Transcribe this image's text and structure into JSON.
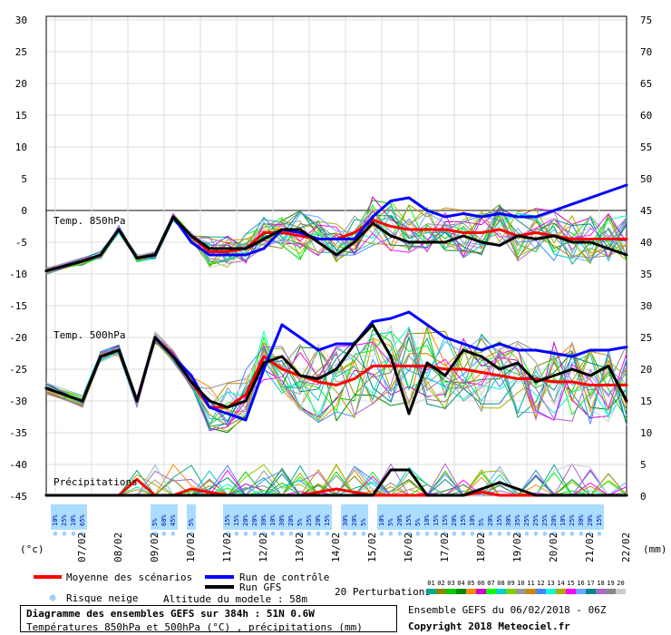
{
  "chart_data": {
    "type": "line",
    "left_axis": {
      "unit": "(°c)",
      "ticks": [
        30,
        25,
        20,
        15,
        10,
        5,
        0,
        -5,
        -10,
        -15,
        -20,
        -25,
        -30,
        -35,
        -40,
        -45
      ]
    },
    "right_axis": {
      "unit": "(mm)",
      "ticks": [
        75,
        70,
        65,
        60,
        55,
        50,
        45,
        40,
        35,
        30,
        25,
        20,
        15,
        10,
        5,
        0
      ]
    },
    "xlim_hours": [
      0,
      384
    ],
    "x_ticks": [
      "07/02",
      "08/02",
      "09/02",
      "10/02",
      "11/02",
      "12/02",
      "13/02",
      "14/02",
      "15/02",
      "16/02",
      "17/02",
      "18/02",
      "19/02",
      "20/02",
      "21/02",
      "22/02"
    ],
    "panel_labels": [
      "Temp. 850hPa",
      "Temp. 500hPa",
      "Précipitations"
    ],
    "x_hours": [
      0,
      24,
      36,
      48,
      60,
      72,
      84,
      96,
      108,
      120,
      132,
      144,
      156,
      168,
      180,
      192,
      204,
      216,
      228,
      240,
      252,
      264,
      276,
      288,
      300,
      312,
      324,
      336,
      348,
      360,
      372,
      384
    ],
    "series": [
      {
        "name": "Moyenne des scénarios",
        "color": "#ff0000",
        "panel": "850",
        "values": [
          -9.5,
          -8,
          -7,
          -3,
          -7.5,
          -7,
          -1,
          -4,
          -6.5,
          -6.5,
          -6,
          -3.5,
          -3.5,
          -4,
          -4.5,
          -4.5,
          -3.5,
          -1.5,
          -2.5,
          -3,
          -3,
          -3,
          -3.5,
          -3.5,
          -3,
          -4,
          -3.5,
          -4,
          -4.5,
          -4.5,
          -4.5,
          -4.5
        ]
      },
      {
        "name": "Run de contrôle",
        "color": "#0000ff",
        "panel": "850",
        "values": [
          -9.5,
          -8,
          -7,
          -3,
          -7.5,
          -7,
          -1,
          -5,
          -7,
          -7,
          -7,
          -6,
          -3,
          -3.5,
          -4.5,
          -4.5,
          -4.5,
          -1,
          1.5,
          2,
          0,
          -1,
          -0.5,
          -1,
          -0.5,
          -1,
          -1,
          0,
          1,
          2,
          3,
          4
        ]
      },
      {
        "name": "Run GFS",
        "color": "#000000",
        "panel": "850",
        "values": [
          -9.5,
          -8,
          -7,
          -3,
          -7.5,
          -7,
          -1,
          -4,
          -6,
          -6,
          -6,
          -4.5,
          -3,
          -3,
          -5,
          -7,
          -5,
          -2,
          -4,
          -5,
          -5,
          -5,
          -4,
          -5,
          -5.5,
          -4,
          -4.5,
          -4,
          -5,
          -5,
          -6,
          -7
        ]
      },
      {
        "name": "Moyenne des scénarios",
        "color": "#ff0000",
        "panel": "500",
        "values": [
          -28,
          -30,
          -23,
          -22,
          -30,
          -20,
          -23,
          -27,
          -31,
          -31,
          -29,
          -23,
          -25,
          -26,
          -27,
          -27.5,
          -26.5,
          -24.5,
          -24.5,
          -24.5,
          -24.5,
          -25,
          -25,
          -25.5,
          -26,
          -26.5,
          -26.5,
          -27,
          -27,
          -27.5,
          -27.5,
          -27.5
        ]
      },
      {
        "name": "Run de contrôle",
        "color": "#0000ff",
        "panel": "500",
        "values": [
          -28,
          -30,
          -23,
          -22,
          -30,
          -20,
          -23,
          -26,
          -31,
          -32,
          -33,
          -25,
          -18,
          -20,
          -22,
          -21,
          -21,
          -17.5,
          -17,
          -16,
          -18,
          -20,
          -21,
          -22,
          -21,
          -22,
          -22,
          -22.5,
          -23,
          -22,
          -22,
          -21.5
        ]
      },
      {
        "name": "Run GFS",
        "color": "#000000",
        "panel": "500",
        "values": [
          -28,
          -30,
          -23,
          -22,
          -30,
          -20,
          -23,
          -27,
          -30,
          -31,
          -30,
          -24,
          -23,
          -26,
          -26.5,
          -25,
          -21,
          -18,
          -23,
          -32,
          -24,
          -26,
          -22,
          -23,
          -25,
          -24,
          -27,
          -26,
          -25,
          -26,
          -24.5,
          -30
        ]
      },
      {
        "name": "Moyenne des scénarios",
        "color": "#ff0000",
        "panel": "precip",
        "values": [
          0,
          0,
          0,
          0,
          2.5,
          0,
          0,
          1,
          0.5,
          0,
          0,
          0,
          0,
          0,
          0.5,
          1,
          0.5,
          0,
          0,
          0,
          0,
          0,
          0,
          0.5,
          0,
          0,
          0,
          0,
          0,
          0,
          0,
          0
        ]
      },
      {
        "name": "Run GFS",
        "color": "#000000",
        "panel": "precip",
        "values": [
          0,
          0,
          0,
          0,
          0,
          0,
          0,
          0,
          0,
          0,
          0,
          0,
          0,
          0,
          0,
          0,
          0,
          0,
          4,
          4,
          0,
          0,
          0,
          1,
          2,
          1,
          0,
          0,
          0,
          0,
          0,
          0
        ]
      }
    ],
    "snow_risk_labels": [
      {
        "hour": 6,
        "text": "10%"
      },
      {
        "hour": 12,
        "text": "25%"
      },
      {
        "hour": 18,
        "text": "10%"
      },
      {
        "hour": 24,
        "text": "65%"
      },
      {
        "hour": 72,
        "text": "5%"
      },
      {
        "hour": 78,
        "text": "60%"
      },
      {
        "hour": 84,
        "text": "45%"
      },
      {
        "hour": 96,
        "text": "5%"
      },
      {
        "hour": 120,
        "text": "15%"
      },
      {
        "hour": 126,
        "text": "15%"
      },
      {
        "hour": 132,
        "text": "20%"
      },
      {
        "hour": 138,
        "text": "20%"
      },
      {
        "hour": 144,
        "text": "30%"
      },
      {
        "hour": 150,
        "text": "10%"
      },
      {
        "hour": 156,
        "text": "30%"
      },
      {
        "hour": 162,
        "text": "20%"
      },
      {
        "hour": 168,
        "text": "5%"
      },
      {
        "hour": 174,
        "text": "25%"
      },
      {
        "hour": 180,
        "text": "20%"
      },
      {
        "hour": 186,
        "text": "15%"
      },
      {
        "hour": 198,
        "text": "30%"
      },
      {
        "hour": 204,
        "text": "20%"
      },
      {
        "hour": 210,
        "text": "5%"
      },
      {
        "hour": 222,
        "text": "10%"
      },
      {
        "hour": 228,
        "text": "5%"
      },
      {
        "hour": 234,
        "text": "20%"
      },
      {
        "hour": 240,
        "text": "15%"
      },
      {
        "hour": 246,
        "text": "5%"
      },
      {
        "hour": 252,
        "text": "10%"
      },
      {
        "hour": 258,
        "text": "15%"
      },
      {
        "hour": 264,
        "text": "15%"
      },
      {
        "hour": 270,
        "text": "20%"
      },
      {
        "hour": 276,
        "text": "15%"
      },
      {
        "hour": 282,
        "text": "10%"
      },
      {
        "hour": 288,
        "text": "5%"
      },
      {
        "hour": 294,
        "text": "20%"
      },
      {
        "hour": 300,
        "text": "15%"
      },
      {
        "hour": 306,
        "text": "30%"
      },
      {
        "hour": 312,
        "text": "35%"
      },
      {
        "hour": 318,
        "text": "25%"
      },
      {
        "hour": 324,
        "text": "25%"
      },
      {
        "hour": 330,
        "text": "25%"
      },
      {
        "hour": 336,
        "text": "20%"
      },
      {
        "hour": 342,
        "text": "10%"
      },
      {
        "hour": 348,
        "text": "25%"
      },
      {
        "hour": 354,
        "text": "30%"
      },
      {
        "hour": 360,
        "text": "20%"
      },
      {
        "hour": 366,
        "text": "15%"
      }
    ],
    "grid": true
  },
  "legend": {
    "mean": "Moyenne des scénarios",
    "control": "Run de contrôle",
    "gfs": "Run GFS",
    "perturbations": "20 Perturbations",
    "snow": "Risque neige",
    "altitude": "Altitude du modele : 58m"
  },
  "perturbation_numbers": [
    "01",
    "02",
    "03",
    "04",
    "05",
    "06",
    "07",
    "08",
    "09",
    "10",
    "11",
    "12",
    "13",
    "14",
    "15",
    "16",
    "17",
    "18",
    "19",
    "20"
  ],
  "perturbation_colors": [
    "#00aa88",
    "#888800",
    "#00cc00",
    "#008800",
    "#ff8800",
    "#cc00cc",
    "#00ff00",
    "#00cccc",
    "#88cc00",
    "#999999",
    "#cc8800",
    "#4488ff",
    "#00ffcc",
    "#aaaa00",
    "#ff00ff",
    "#66aaff",
    "#008888",
    "#aa66cc",
    "#888888",
    "#cccccc"
  ],
  "footer": {
    "title": "Diagramme des ensembles GEFS sur 384h : 51N 0.6W",
    "subtitle": "Températures 850hPa et 500hPa (°C) , précipitations (mm)",
    "ensemble": "Ensemble GEFS du 06/02/2018 - 06Z",
    "copyright": "Copyright 2018 Meteociel.fr"
  }
}
